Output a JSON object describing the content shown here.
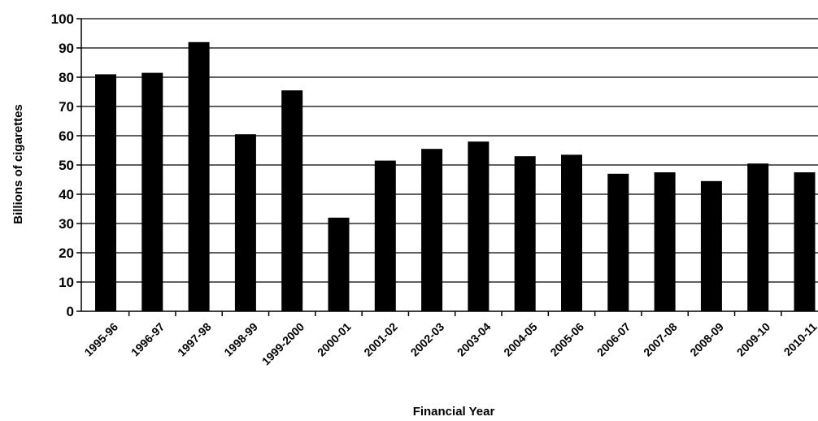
{
  "chart_data": {
    "type": "bar",
    "title": "",
    "xlabel": "Financial Year",
    "ylabel": "Billions of cigarettes",
    "ylim": [
      0,
      100
    ],
    "yticks": [
      0,
      10,
      20,
      30,
      40,
      50,
      60,
      70,
      80,
      90,
      100
    ],
    "grid": true,
    "legend": "none",
    "bar_color": "#000000",
    "categories": [
      "1995-96",
      "1996-97",
      "1997-98",
      "1998-99",
      "1999-2000",
      "2000-01",
      "2001-02",
      "2002-03",
      "2003-04",
      "2004-05",
      "2005-06",
      "2006-07",
      "2007-08",
      "2008-09",
      "2009-10",
      "2010-11"
    ],
    "values": [
      81,
      81.5,
      92,
      60.5,
      75.5,
      32,
      51.5,
      55.5,
      58,
      53,
      53.5,
      47,
      47.5,
      44.5,
      50.5,
      47.5
    ]
  }
}
